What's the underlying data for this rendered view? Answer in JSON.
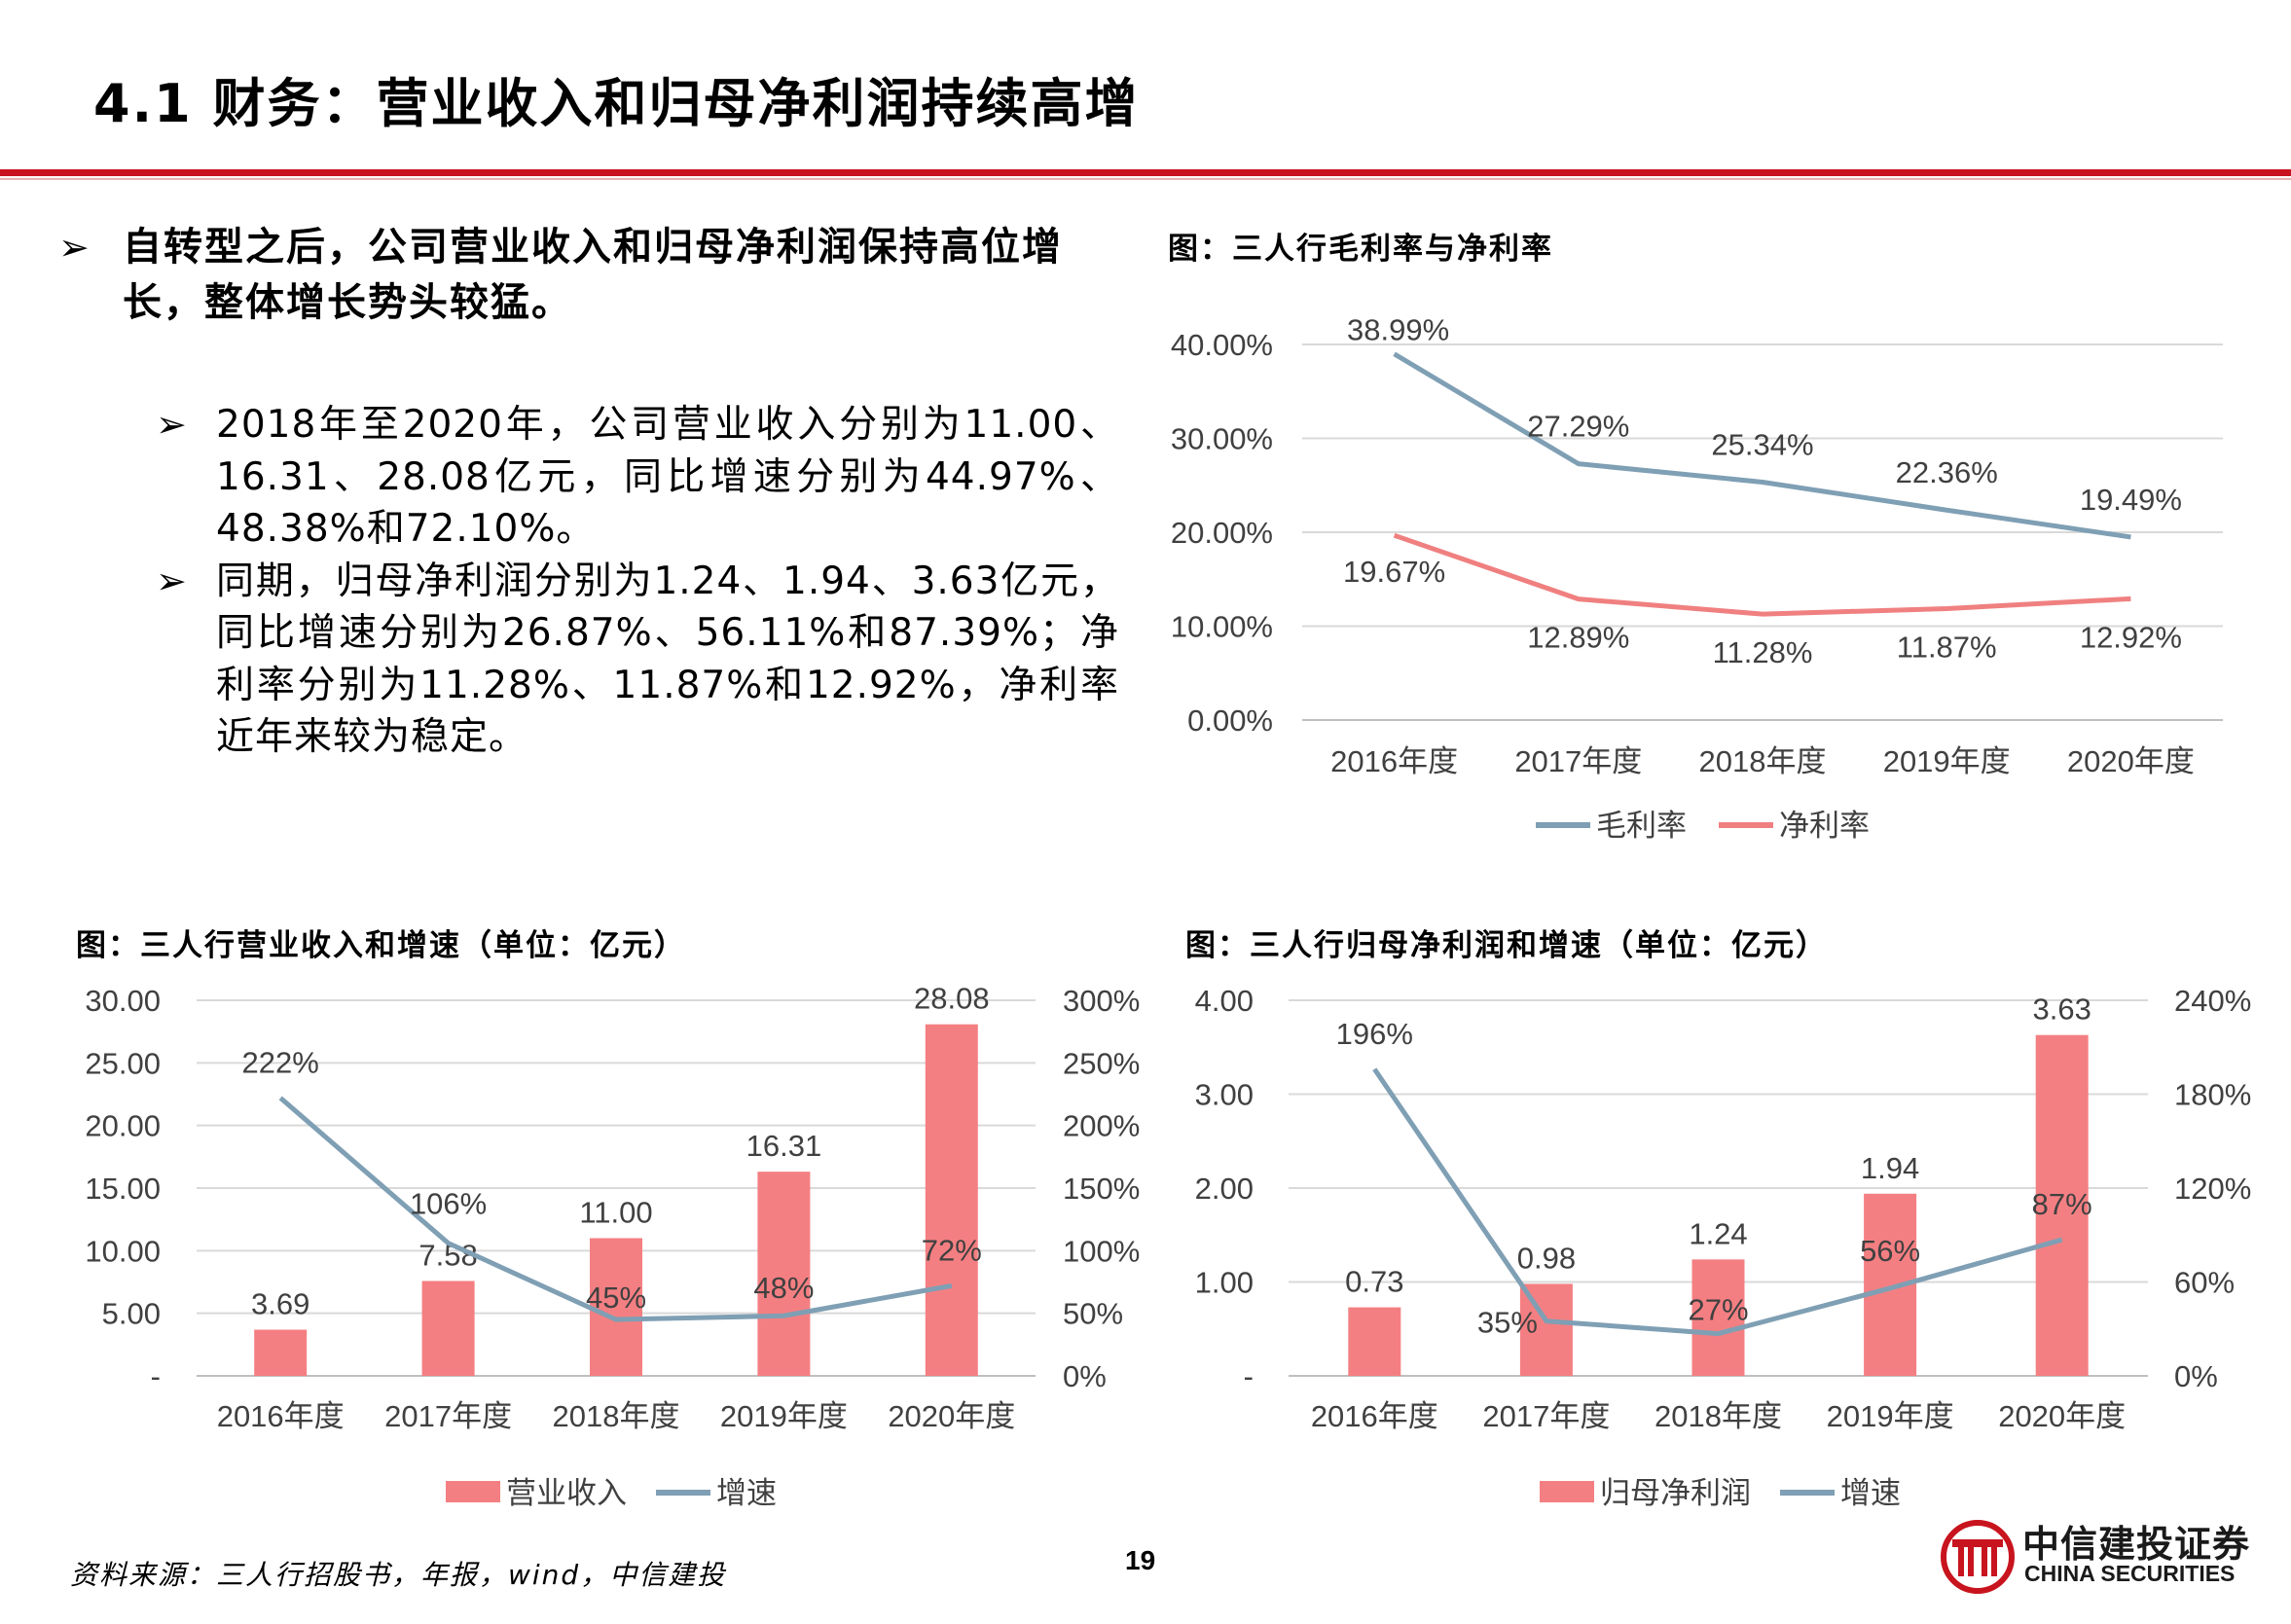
{
  "page": {
    "title": "4.1 财务：营业收入和归母净利润持续高增",
    "bullet_main": "自转型之后，公司营业收入和归母净利润保持高位增长，整体增长势头较猛。",
    "bullet_sub_1": "2018年至2020年，公司营业收入分别为11.00、16.31、28.08亿元，同比增速分别为44.97%、48.38%和72.10%。",
    "bullet_sub_2": "同期，归母净利润分别为1.24、1.94、3.63亿元，同比增速分别为26.87%、56.11%和87.39%；净利率分别为11.28%、11.87%和12.92%，净利率近年来较为稳定。",
    "arrow_glyph": "➢",
    "source": "资料来源：三人行招股书，年报，wind，中信建投",
    "page_number": "19",
    "logo": {
      "name_cn": "中信建投证券",
      "name_en": "CHINA SECURITIES",
      "color": "#c8141e"
    }
  },
  "chart_data": [
    {
      "id": "margin",
      "type": "line",
      "title": "图：三人行毛利率与净利率",
      "categories": [
        "2016年度",
        "2017年度",
        "2018年度",
        "2019年度",
        "2020年度"
      ],
      "y_ticks": [
        "0.00%",
        "10.00%",
        "20.00%",
        "30.00%",
        "40.00%"
      ],
      "ylim": [
        0,
        40
      ],
      "grid": true,
      "legend_position": "bottom",
      "series": [
        {
          "name": "毛利率",
          "color": "#7f9fb4",
          "values": [
            38.99,
            27.29,
            25.34,
            22.36,
            19.49
          ],
          "labels": [
            "38.99%",
            "27.29%",
            "25.34%",
            "22.36%",
            "19.49%"
          ]
        },
        {
          "name": "净利率",
          "color": "#f08080",
          "values": [
            19.67,
            12.89,
            11.28,
            11.87,
            12.92
          ],
          "labels": [
            "19.67%",
            "12.89%",
            "11.28%",
            "11.87%",
            "12.92%"
          ]
        }
      ]
    },
    {
      "id": "revenue",
      "type": "bar",
      "title": "图：三人行营业收入和增速（单位：亿元）",
      "categories": [
        "2016年度",
        "2017年度",
        "2018年度",
        "2019年度",
        "2020年度"
      ],
      "y_ticks": [
        "-",
        "5.00",
        "10.00",
        "15.00",
        "20.00",
        "25.00",
        "30.00"
      ],
      "ylim": [
        0,
        30
      ],
      "y2_ticks": [
        "0%",
        "50%",
        "100%",
        "150%",
        "200%",
        "250%",
        "300%"
      ],
      "y2lim": [
        0,
        300
      ],
      "grid": true,
      "legend_position": "bottom",
      "bar_series": {
        "name": "营业收入",
        "color": "#f47f82",
        "values": [
          3.69,
          7.58,
          11.0,
          16.31,
          28.08
        ],
        "labels": [
          "3.69",
          "7.58",
          "11.00",
          "16.31",
          "28.08"
        ]
      },
      "line_series": {
        "name": "增速",
        "color": "#7f9fb4",
        "values": [
          222,
          106,
          45,
          48,
          72
        ],
        "labels": [
          "222%",
          "106%",
          "45%",
          "48%",
          "72%"
        ]
      }
    },
    {
      "id": "profit",
      "type": "bar",
      "title": "图：三人行归母净利润和增速（单位：亿元）",
      "categories": [
        "2016年度",
        "2017年度",
        "2018年度",
        "2019年度",
        "2020年度"
      ],
      "y_ticks": [
        "-",
        "1.00",
        "2.00",
        "3.00",
        "4.00"
      ],
      "ylim": [
        0,
        4
      ],
      "y2_ticks": [
        "0%",
        "60%",
        "120%",
        "180%",
        "240%"
      ],
      "y2lim": [
        0,
        240
      ],
      "grid": true,
      "legend_position": "bottom",
      "bar_series": {
        "name": "归母净利润",
        "color": "#f47f82",
        "values": [
          0.73,
          0.98,
          1.24,
          1.94,
          3.63
        ],
        "labels": [
          "0.73",
          "0.98",
          "1.24",
          "1.94",
          "3.63"
        ]
      },
      "line_series": {
        "name": "增速",
        "color": "#7f9fb4",
        "values": [
          196,
          35,
          27,
          56,
          87
        ],
        "labels": [
          "196%",
          "35%",
          "27%",
          "56%",
          "87%"
        ]
      }
    }
  ]
}
